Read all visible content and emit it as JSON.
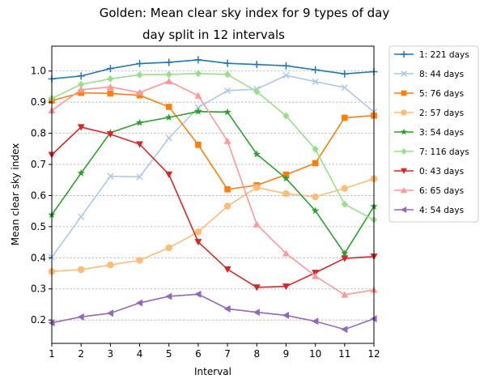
{
  "chart_data": {
    "type": "line",
    "title_line1": "Golden: Mean clear sky index for 9 types of day",
    "title_line2": "day split in 12 intervals",
    "xlabel": "Interval",
    "ylabel": "Mean clear sky index",
    "xlim": [
      1,
      12
    ],
    "ylim": [
      0.125,
      1.08
    ],
    "x": [
      1,
      2,
      3,
      4,
      5,
      6,
      7,
      8,
      9,
      10,
      11,
      12
    ],
    "x_ticks": [
      "1",
      "2",
      "3",
      "4",
      "5",
      "6",
      "7",
      "8",
      "9",
      "10",
      "11",
      "12"
    ],
    "y_ticks": [
      {
        "value": 0.2,
        "label": "0.2"
      },
      {
        "value": 0.3,
        "label": "0.3"
      },
      {
        "value": 0.4,
        "label": "0.4"
      },
      {
        "value": 0.5,
        "label": "0.5"
      },
      {
        "value": 0.6,
        "label": "0.6"
      },
      {
        "value": 0.7,
        "label": "0.7"
      },
      {
        "value": 0.8,
        "label": "0.8"
      },
      {
        "value": 0.9,
        "label": "0.9"
      },
      {
        "value": 1.0,
        "label": "1.0"
      }
    ],
    "grid": "horizontal-dashed",
    "legend_position": "outside-right",
    "series": [
      {
        "name": "1: 221 days",
        "color": "#1f77b4",
        "marker": "plus",
        "values": [
          0.975,
          0.984,
          1.008,
          1.024,
          1.028,
          1.036,
          1.025,
          1.021,
          1.017,
          1.004,
          0.991,
          0.998
        ]
      },
      {
        "name": "8: 44 days",
        "color": "#aec7e8",
        "marker": "x",
        "values": [
          0.402,
          0.532,
          0.662,
          0.66,
          0.785,
          0.883,
          0.937,
          0.942,
          0.986,
          0.966,
          0.947,
          0.868
        ]
      },
      {
        "name": "5: 76 days",
        "color": "#ff7f0e",
        "marker": "square",
        "values": [
          0.905,
          0.93,
          0.928,
          0.922,
          0.885,
          0.763,
          0.62,
          0.633,
          0.667,
          0.704,
          0.85,
          0.857
        ]
      },
      {
        "name": "2: 57 days",
        "color": "#ffbb78",
        "marker": "circle",
        "values": [
          0.356,
          0.362,
          0.377,
          0.392,
          0.432,
          0.483,
          0.566,
          0.626,
          0.606,
          0.596,
          0.623,
          0.654
        ]
      },
      {
        "name": "3: 54 days",
        "color": "#2ca02c",
        "marker": "star",
        "values": [
          0.538,
          0.672,
          0.802,
          0.834,
          0.851,
          0.87,
          0.868,
          0.733,
          0.655,
          0.551,
          0.414,
          0.565
        ]
      },
      {
        "name": "7: 116 days",
        "color": "#98df8a",
        "marker": "diamond",
        "values": [
          0.912,
          0.957,
          0.975,
          0.988,
          0.989,
          0.992,
          0.989,
          0.934,
          0.856,
          0.749,
          0.572,
          0.522
        ]
      },
      {
        "name": "0: 43 days",
        "color": "#d62728",
        "marker": "triangle-down",
        "values": [
          0.731,
          0.82,
          0.797,
          0.765,
          0.668,
          0.451,
          0.363,
          0.305,
          0.308,
          0.352,
          0.398,
          0.404
        ]
      },
      {
        "name": "6: 65 days",
        "color": "#ff9896",
        "marker": "triangle-up",
        "values": [
          0.873,
          0.94,
          0.949,
          0.931,
          0.967,
          0.921,
          0.775,
          0.507,
          0.414,
          0.341,
          0.281,
          0.297
        ]
      },
      {
        "name": "4: 54 days",
        "color": "#9467bd",
        "marker": "triangle-left",
        "values": [
          0.191,
          0.21,
          0.222,
          0.255,
          0.276,
          0.283,
          0.236,
          0.225,
          0.215,
          0.196,
          0.17,
          0.204
        ]
      }
    ]
  }
}
